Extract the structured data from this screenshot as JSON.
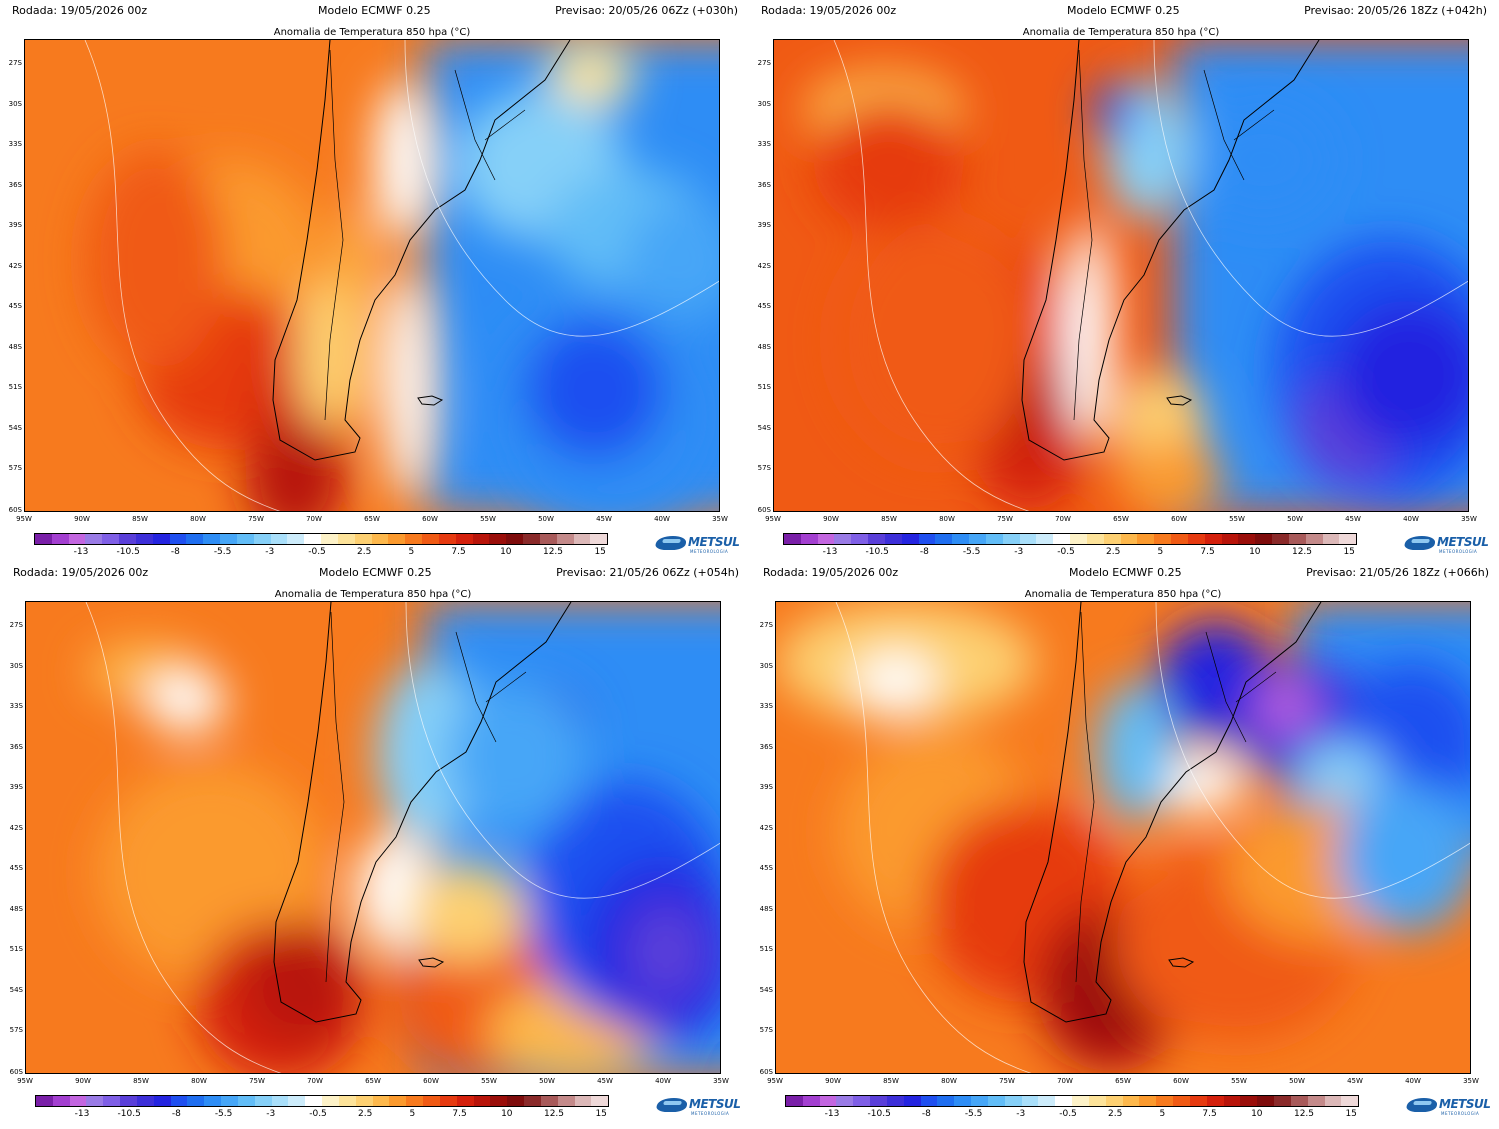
{
  "panels": [
    {
      "run": "Rodada: 19/05/2026 00z",
      "model": "Modelo ECMWF 0.25",
      "forecast": "Previsao: 20/05/26 06Zz (+030h)",
      "title": "Anomalia de Temperatura 850 hpa (°C)"
    },
    {
      "run": "Rodada: 19/05/2026 00z",
      "model": "Modelo ECMWF 0.25",
      "forecast": "Previsao: 20/05/26 18Zz (+042h)",
      "title": "Anomalia de Temperatura 850 hpa (°C)"
    },
    {
      "run": "Rodada: 19/05/2026 00z",
      "model": "Modelo ECMWF 0.25",
      "forecast": "Previsao: 21/05/26 06Zz (+054h)",
      "title": "Anomalia de Temperatura 850 hpa (°C)"
    },
    {
      "run": "Rodada: 19/05/2026 00z",
      "model": "Modelo ECMWF 0.25",
      "forecast": "Previsao: 21/05/26 18Zz (+066h)",
      "title": "Anomalia de Temperatura 850 hpa (°C)"
    }
  ],
  "latitude_labels": [
    "27S",
    "30S",
    "33S",
    "36S",
    "39S",
    "42S",
    "45S",
    "48S",
    "51S",
    "54S",
    "57S",
    "60S"
  ],
  "longitude_labels": [
    "95W",
    "90W",
    "85W",
    "80W",
    "75W",
    "70W",
    "65W",
    "60W",
    "55W",
    "50W",
    "45W",
    "40W",
    "35W"
  ],
  "colorbar": {
    "labels": [
      "-13",
      "-10.5",
      "-8",
      "-5.5",
      "-3",
      "-0.5",
      "2.5",
      "5",
      "7.5",
      "10",
      "12.5",
      "15"
    ],
    "colors": [
      "#7a1fa8",
      "#a33fd0",
      "#c366e0",
      "#9a7be6",
      "#7f5fe6",
      "#5a3fd9",
      "#3d2fd9",
      "#2424e0",
      "#1f4ff0",
      "#1f6ef0",
      "#2e8df5",
      "#46a6f7",
      "#62bdf7",
      "#86d0f8",
      "#a9dffa",
      "#cdecfb",
      "#ffffff",
      "#fdf2c8",
      "#fde39a",
      "#fdd072",
      "#fdb84c",
      "#fb9a2e",
      "#f77a1e",
      "#f05a14",
      "#e63a10",
      "#d4200c",
      "#b8140a",
      "#9a0e0a",
      "#7e0c0c",
      "#8a2a2a",
      "#a85a5a",
      "#c48a8a",
      "#dcb8b8",
      "#efd9d9"
    ]
  },
  "logo": {
    "word": "METSUL",
    "sub": "METEOROLOGIA"
  }
}
